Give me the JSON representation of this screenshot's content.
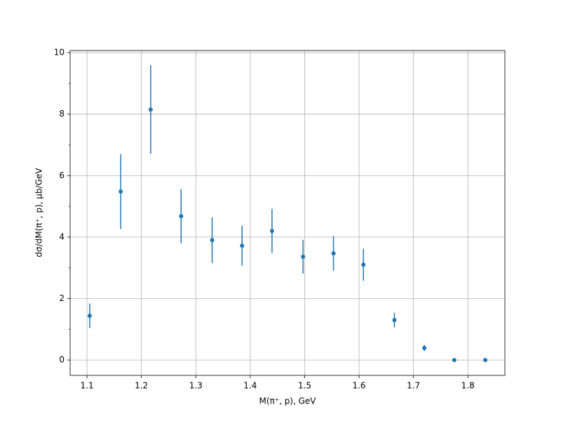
{
  "chart_data": {
    "type": "errorbar",
    "xlabel": "M(π⁺, p), GeV",
    "ylabel": "dσ/dM(π⁺, p), μb/GeV",
    "x": [
      1.105,
      1.162,
      1.217,
      1.273,
      1.33,
      1.385,
      1.44,
      1.497,
      1.553,
      1.608,
      1.665,
      1.72,
      1.775,
      1.832
    ],
    "values": [
      1.44,
      5.48,
      8.15,
      4.68,
      3.9,
      3.72,
      4.2,
      3.36,
      3.47,
      3.1,
      1.3,
      0.39,
      0,
      0
    ],
    "errors": [
      0.4,
      1.22,
      1.44,
      0.88,
      0.74,
      0.65,
      0.72,
      0.55,
      0.56,
      0.52,
      0.24,
      0.1,
      0.02,
      0.02
    ],
    "color": "#1f77b4",
    "xlim": [
      1.069,
      1.868
    ],
    "ylim": [
      -0.5,
      10.07
    ],
    "xticks": [
      1.1,
      1.2,
      1.3,
      1.4,
      1.5,
      1.6,
      1.7,
      1.8
    ],
    "yticks": [
      0,
      2,
      4,
      6,
      8,
      10
    ],
    "yminorticks": [
      1,
      3,
      5,
      7,
      9
    ],
    "grid": true
  }
}
